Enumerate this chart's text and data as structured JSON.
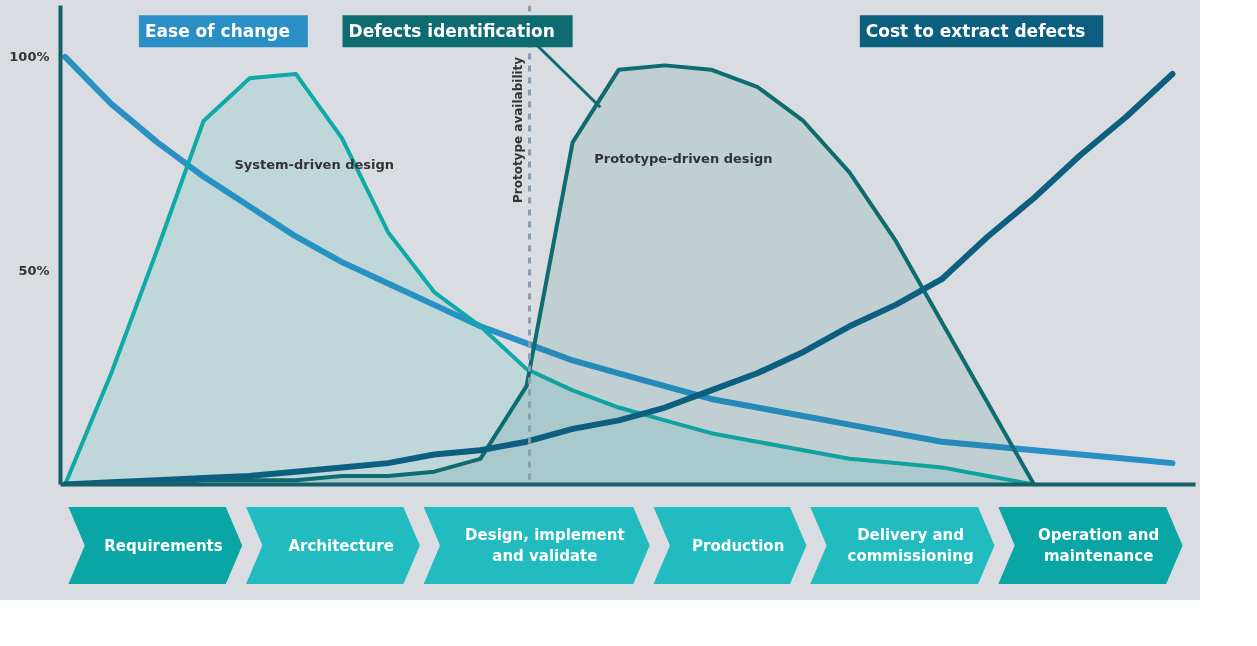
{
  "chart_data": [
    {
      "type": "line",
      "categories": [
        null,
        null,
        null,
        null,
        null,
        null,
        null,
        null,
        null,
        null,
        null,
        null,
        null,
        null,
        null,
        null,
        null,
        null,
        null,
        null,
        null,
        null,
        null,
        null,
        null
      ],
      "ylim": [
        0,
        112
      ],
      "yticks": [
        {
          "value": 50,
          "label": "50%"
        },
        {
          "value": 100,
          "label": "100%"
        }
      ],
      "tick_labels": "y",
      "legend": false,
      "series": [
        {
          "name": "Ease of change",
          "color": "#2a8fc4",
          "values": [
            100,
            89,
            80,
            72,
            65,
            58,
            52,
            47,
            42,
            37,
            33,
            29,
            26,
            23,
            20,
            18,
            16,
            14,
            12,
            10,
            9,
            8,
            7,
            6,
            5
          ]
        },
        {
          "name": "System-driven design",
          "type": "area",
          "color": "#10a9a9",
          "values": [
            0,
            26,
            55,
            85,
            95,
            96,
            81,
            59,
            45,
            37,
            27,
            22,
            18,
            15,
            12,
            10,
            8,
            6,
            5,
            4,
            2,
            0,
            null,
            null,
            null
          ]
        },
        {
          "name": "Prototype-driven design",
          "type": "area",
          "color": "#0e6b6f",
          "values": [
            0,
            0,
            0,
            1,
            1,
            1,
            2,
            2,
            3,
            6,
            23,
            80,
            97,
            98,
            97,
            93,
            85,
            73,
            57,
            38,
            19,
            0,
            null,
            null,
            null
          ]
        },
        {
          "name": "Cost to extract defects",
          "color": "#0d5f80",
          "values": [
            0,
            0.5,
            1,
            1.5,
            2,
            3,
            4,
            5,
            7,
            8,
            10,
            13,
            15,
            18,
            22,
            26,
            31,
            37,
            42,
            48,
            58,
            67,
            77,
            86,
            96
          ]
        }
      ],
      "annotations": [
        "Defects identification",
        "Prototype availability"
      ]
    },
    {
      "type": "other",
      "annotations": [
        "Requirements",
        "Architecture",
        "Design, implement and validate",
        "Production",
        "Delivery and commissioning",
        "Operation and maintenance"
      ]
    }
  ]
}
